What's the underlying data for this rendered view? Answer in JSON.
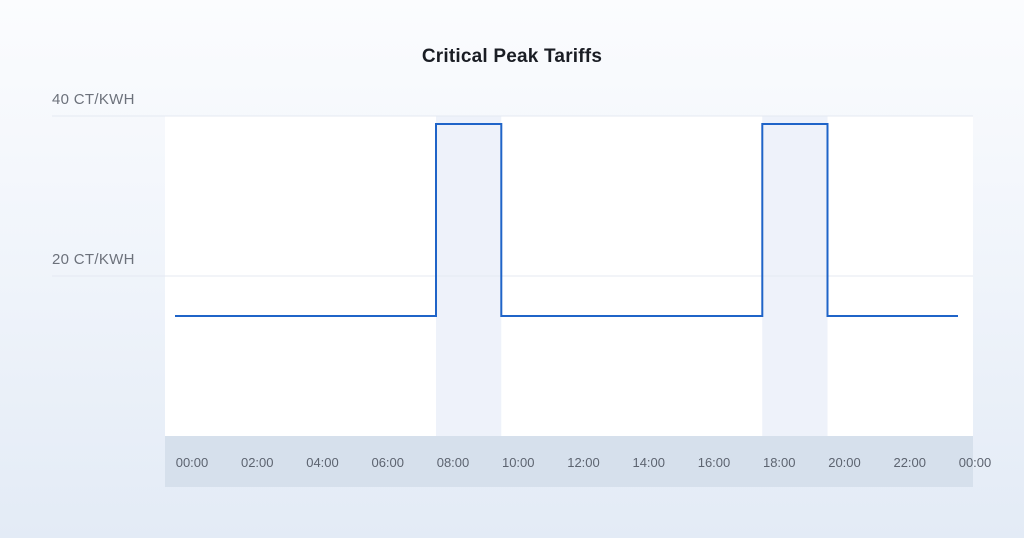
{
  "chart_data": {
    "type": "line",
    "step": true,
    "title": "Critical Peak Tariffs",
    "xlabel": "",
    "ylabel": "",
    "y_ticks": [
      {
        "value": 40,
        "label": "40 CT/KWH"
      },
      {
        "value": 20,
        "label": "20 CT/KWH"
      }
    ],
    "ylim": [
      0,
      40
    ],
    "x_ticks": [
      "00:00",
      "02:00",
      "04:00",
      "06:00",
      "08:00",
      "10:00",
      "12:00",
      "14:00",
      "16:00",
      "18:00",
      "20:00",
      "22:00",
      "00:00"
    ],
    "xlim": [
      0,
      24
    ],
    "highlight_ranges": [
      [
        8,
        10
      ],
      [
        18,
        20
      ]
    ],
    "series": [
      {
        "x": [
          0,
          8,
          8,
          10,
          10,
          18,
          18,
          20,
          20,
          24
        ],
        "y": [
          15,
          15,
          39,
          39,
          15,
          15,
          39,
          39,
          15,
          15
        ]
      }
    ],
    "colors": {
      "line": "#1f64c8",
      "highlight": "#eef2fa",
      "axis_band": "#d6e0ec",
      "grid": "#e4e9f1",
      "plot_bg": "#ffffff"
    },
    "grid": true
  }
}
